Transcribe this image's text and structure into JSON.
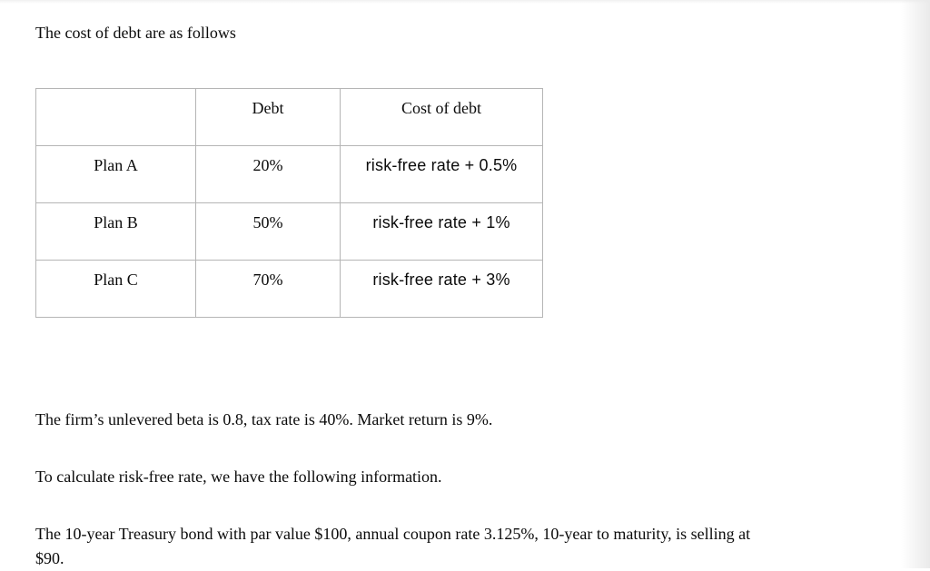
{
  "intro": "The cost of debt are as follows",
  "table": {
    "headers": [
      "",
      "Debt",
      "Cost of debt"
    ],
    "rows": [
      {
        "plan": "Plan A",
        "debt": "20%",
        "cost": "risk-free rate + 0.5%"
      },
      {
        "plan": "Plan B",
        "debt": "50%",
        "cost": "risk-free rate + 1%"
      },
      {
        "plan": "Plan C",
        "debt": "70%",
        "cost": "risk-free rate + 3%"
      }
    ],
    "border_color": "#b5b5b5"
  },
  "paragraphs": {
    "beta": "The firm’s unlevered beta is 0.8, tax rate is 40%. Market return is 9%.",
    "risk_free_intro": "To calculate risk-free rate, we have the following information.",
    "treasury_line1": "The 10-year Treasury bond with par value $100, annual coupon rate 3.125%, 10-year to maturity, is selling at",
    "treasury_line2": "$90."
  },
  "colors": {
    "background": "#ffffff",
    "text": "#0b0b0b",
    "table_border": "#b5b5b5",
    "edge_shade": "#e9e9e9"
  }
}
